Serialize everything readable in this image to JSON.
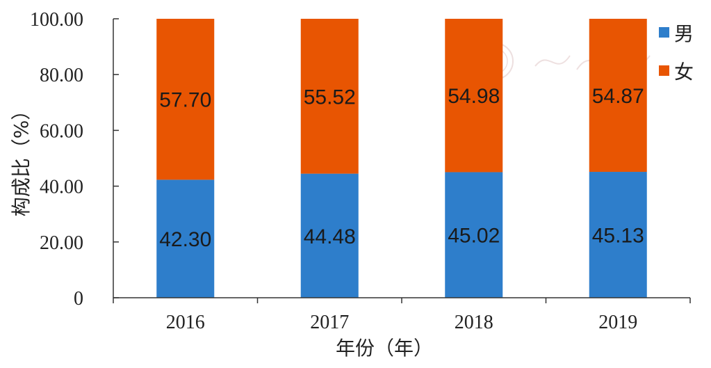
{
  "chart_data": {
    "type": "bar",
    "stacked": true,
    "categories": [
      "2016",
      "2017",
      "2018",
      "2019"
    ],
    "series": [
      {
        "name": "男",
        "values": [
          42.3,
          44.48,
          45.02,
          45.13
        ],
        "labels": [
          "42.30",
          "44.48",
          "45.02",
          "45.13"
        ],
        "color": "#2e7ecb"
      },
      {
        "name": "女",
        "values": [
          57.7,
          55.52,
          54.98,
          54.87
        ],
        "labels": [
          "57.70",
          "55.52",
          "54.98",
          "54.87"
        ],
        "color": "#e85502"
      }
    ],
    "title": "",
    "xlabel": "年份（年）",
    "ylabel": "构成比（%）",
    "ylim": [
      0,
      100
    ],
    "yticks": [
      "0",
      "20.00",
      "40.00",
      "60.00",
      "80.00",
      "100.00"
    ],
    "grid": false,
    "legend_position": "top-right"
  }
}
